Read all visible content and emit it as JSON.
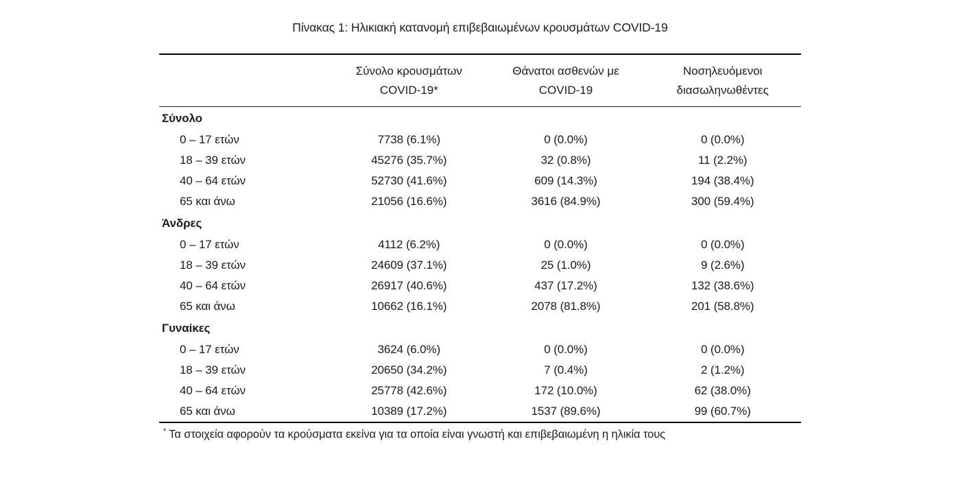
{
  "page": {
    "title": "Πίνακας 1: Ηλικιακή κατανομή επιβεβαιωμένων κρουσμάτων COVID-19"
  },
  "colors": {
    "text": "#1a1a1a",
    "rule": "#000000",
    "background": "#ffffff"
  },
  "table": {
    "column_headers": [
      {
        "line1": "Σύνολο κρουσμάτων",
        "line2": "COVID-19*"
      },
      {
        "line1": "Θάνατοι ασθενών με",
        "line2": "COVID-19"
      },
      {
        "line1": "Νοσηλευόμενοι",
        "line2": "διασωληνωθέντες"
      }
    ],
    "sections": [
      {
        "label": "Σύνολο",
        "rows": [
          {
            "age": "0 – 17 ετών",
            "cases": "7738 (6.1%)",
            "deaths": "0 (0.0%)",
            "intubated": "0 (0.0%)"
          },
          {
            "age": "18 – 39 ετών",
            "cases": "45276 (35.7%)",
            "deaths": "32 (0.8%)",
            "intubated": "11 (2.2%)"
          },
          {
            "age": "40 – 64 ετών",
            "cases": "52730 (41.6%)",
            "deaths": "609 (14.3%)",
            "intubated": "194 (38.4%)"
          },
          {
            "age": "65 και άνω",
            "cases": "21056 (16.6%)",
            "deaths": "3616 (84.9%)",
            "intubated": "300 (59.4%)"
          }
        ]
      },
      {
        "label": "Άνδρες",
        "rows": [
          {
            "age": "0 – 17 ετών",
            "cases": "4112 (6.2%)",
            "deaths": "0 (0.0%)",
            "intubated": "0 (0.0%)"
          },
          {
            "age": "18 – 39 ετών",
            "cases": "24609 (37.1%)",
            "deaths": "25 (1.0%)",
            "intubated": "9 (2.6%)"
          },
          {
            "age": "40 – 64 ετών",
            "cases": "26917 (40.6%)",
            "deaths": "437 (17.2%)",
            "intubated": "132 (38.6%)"
          },
          {
            "age": "65 και άνω",
            "cases": "10662 (16.1%)",
            "deaths": "2078 (81.8%)",
            "intubated": "201 (58.8%)"
          }
        ]
      },
      {
        "label": "Γυναίκες",
        "rows": [
          {
            "age": "0 – 17 ετών",
            "cases": "3624 (6.0%)",
            "deaths": "0 (0.0%)",
            "intubated": "0 (0.0%)"
          },
          {
            "age": "18 – 39 ετών",
            "cases": "20650 (34.2%)",
            "deaths": "7 (0.4%)",
            "intubated": "2 (1.2%)"
          },
          {
            "age": "40 – 64 ετών",
            "cases": "25778 (42.6%)",
            "deaths": "172 (10.0%)",
            "intubated": "62 (38.0%)"
          },
          {
            "age": "65 και άνω",
            "cases": "10389 (17.2%)",
            "deaths": "1537 (89.6%)",
            "intubated": "99 (60.7%)"
          }
        ]
      }
    ],
    "footnote": {
      "marker": "*",
      "text": "Τα στοιχεία αφορούν τα κρούσματα εκείνα για τα οποία είναι γνωστή και επιβεβαιωμένη η ηλικία τους"
    }
  }
}
